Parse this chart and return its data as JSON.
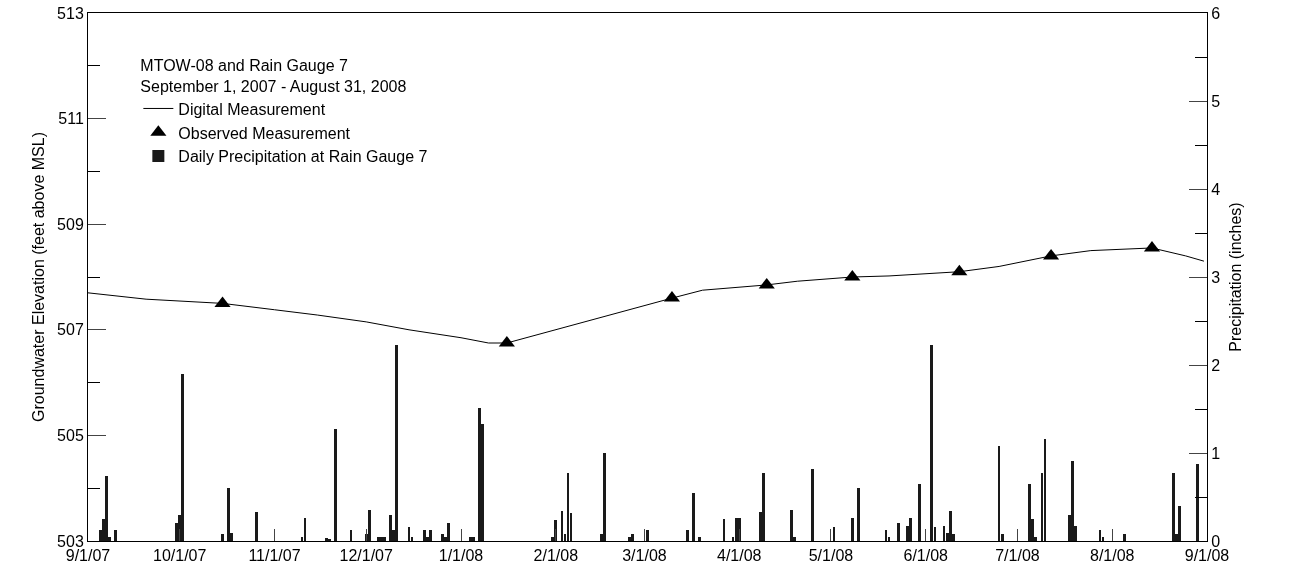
{
  "chart_data": {
    "type": "line",
    "legend_title": "MTOW-08 and Rain Gauge 7\nSeptember 1, 2007 - August 31, 2008",
    "ylabel": "Groundwater Elevation (feet above MSL)",
    "y2label": "Precipitation (inches)",
    "legend": "top left",
    "grid": false,
    "xlim": [
      "2007-09-01",
      "2008-09-01"
    ],
    "xticks": [
      {
        "value": "2007-09-01",
        "label": "9/1/07"
      },
      {
        "value": "2007-10-01",
        "label": "10/1/07"
      },
      {
        "value": "2007-11-01",
        "label": "11/1/07"
      },
      {
        "value": "2007-12-01",
        "label": "12/1/07"
      },
      {
        "value": "2008-01-01",
        "label": "1/1/08"
      },
      {
        "value": "2008-02-01",
        "label": "2/1/08"
      },
      {
        "value": "2008-03-01",
        "label": "3/1/08"
      },
      {
        "value": "2008-04-01",
        "label": "4/1/08"
      },
      {
        "value": "2008-05-01",
        "label": "5/1/08"
      },
      {
        "value": "2008-06-01",
        "label": "6/1/08"
      },
      {
        "value": "2008-07-01",
        "label": "7/1/08"
      },
      {
        "value": "2008-08-01",
        "label": "8/1/08"
      },
      {
        "value": "2008-09-01",
        "label": "9/1/08"
      }
    ],
    "ylim": [
      503,
      513
    ],
    "yticks": [
      503,
      {
        "value": 504,
        "label": null
      },
      505,
      {
        "value": 506,
        "label": null
      },
      507,
      {
        "value": 508,
        "label": null
      },
      509,
      {
        "value": 510,
        "label": null
      },
      511,
      {
        "value": 512,
        "label": null
      },
      513
    ],
    "y2lim": [
      0,
      6
    ],
    "y2ticks": [
      0,
      {
        "value": 0.5,
        "label": null
      },
      1,
      {
        "value": 1.5,
        "label": null
      },
      2,
      {
        "value": 2.5,
        "label": null
      },
      3,
      {
        "value": 3.5,
        "label": null
      },
      4,
      {
        "value": 4.5,
        "label": null
      },
      5,
      {
        "value": 5.5,
        "label": null
      },
      6
    ],
    "series": [
      {
        "name": "Digital Measurement",
        "color": "#000000",
        "marker": "none",
        "line_style": "solid",
        "x": [
          "2007-09-01",
          "2007-09-20",
          "2007-10-15",
          "2007-11-01",
          "2007-11-15",
          "2007-12-01",
          "2007-12-15",
          "2008-01-01",
          "2008-01-10",
          "2008-01-16",
          "2008-03-10",
          "2008-03-20",
          "2008-04-10",
          "2008-04-20",
          "2008-05-08",
          "2008-05-20",
          "2008-06-12",
          "2008-06-25",
          "2008-07-12",
          "2008-07-25",
          "2008-08-14",
          "2008-08-25",
          "2008-08-31"
        ],
        "values": [
          507.7,
          507.58,
          507.5,
          507.38,
          507.28,
          507.15,
          507.0,
          506.85,
          506.75,
          506.75,
          507.6,
          507.75,
          507.85,
          507.92,
          508.0,
          508.02,
          508.1,
          508.2,
          508.4,
          508.5,
          508.55,
          508.4,
          508.3
        ]
      },
      {
        "name": "Observed Measurement",
        "type": "scatter",
        "color": "#000000",
        "marker": "triangle",
        "x": [
          "2007-10-15",
          "2008-01-16",
          "2008-03-10",
          "2008-04-10",
          "2008-05-08",
          "2008-06-12",
          "2008-07-12",
          "2008-08-14"
        ],
        "values": [
          507.5,
          506.75,
          507.6,
          507.85,
          508.0,
          508.1,
          508.4,
          508.55
        ]
      },
      {
        "name": "Daily Precipitation at Rain Gauge 7",
        "type": "bar",
        "axis": "y2",
        "color": "#1a1a1a",
        "x": [
          "2007-09-05",
          "2007-09-06",
          "2007-09-07",
          "2007-09-08",
          "2007-09-10",
          "2007-09-30",
          "2007-10-01",
          "2007-10-02",
          "2007-10-15",
          "2007-10-17",
          "2007-10-18",
          "2007-10-26",
          "2007-11-10",
          "2007-11-11",
          "2007-11-18",
          "2007-11-19",
          "2007-11-21",
          "2007-11-26",
          "2007-12-01",
          "2007-12-02",
          "2007-12-05",
          "2007-12-06",
          "2007-12-07",
          "2007-12-09",
          "2007-12-10",
          "2007-12-11",
          "2007-12-15",
          "2007-12-16",
          "2007-12-20",
          "2007-12-21",
          "2007-12-22",
          "2007-12-26",
          "2007-12-27",
          "2007-12-28",
          "2008-01-04",
          "2008-01-05",
          "2008-01-07",
          "2008-01-08",
          "2008-01-31",
          "2008-02-01",
          "2008-02-03",
          "2008-02-04",
          "2008-02-05",
          "2008-02-06",
          "2008-02-16",
          "2008-02-17",
          "2008-02-25",
          "2008-02-26",
          "2008-03-02",
          "2008-03-15",
          "2008-03-17",
          "2008-03-19",
          "2008-03-27",
          "2008-03-30",
          "2008-03-31",
          "2008-04-01",
          "2008-04-08",
          "2008-04-09",
          "2008-04-18",
          "2008-04-19",
          "2008-04-25",
          "2008-05-02",
          "2008-05-08",
          "2008-05-10",
          "2008-05-19",
          "2008-05-20",
          "2008-05-23",
          "2008-05-26",
          "2008-05-27",
          "2008-05-30",
          "2008-06-03",
          "2008-06-04",
          "2008-06-07",
          "2008-06-08",
          "2008-06-09",
          "2008-06-10",
          "2008-06-25",
          "2008-06-26",
          "2008-07-05",
          "2008-07-06",
          "2008-07-07",
          "2008-07-09",
          "2008-07-10",
          "2008-07-18",
          "2008-07-19",
          "2008-07-20",
          "2008-07-28",
          "2008-07-29",
          "2008-08-05",
          "2008-08-21",
          "2008-08-22",
          "2008-08-23",
          "2008-08-29"
        ],
        "values": [
          0.13,
          0.25,
          0.74,
          0.04,
          0.13,
          0.21,
          0.3,
          1.9,
          0.08,
          0.6,
          0.09,
          0.33,
          0.04,
          0.26,
          0.03,
          0.02,
          1.27,
          0.12,
          0.08,
          0.35,
          0.04,
          0.04,
          0.04,
          0.3,
          0.13,
          2.23,
          0.16,
          0.04,
          0.12,
          0.04,
          0.13,
          0.08,
          0.04,
          0.2,
          0.04,
          0.04,
          1.51,
          1.33,
          0.04,
          0.24,
          0.34,
          0.08,
          0.77,
          0.32,
          0.08,
          1.0,
          0.04,
          0.08,
          0.12,
          0.12,
          0.54,
          0.04,
          0.25,
          0.04,
          0.26,
          0.26,
          0.33,
          0.77,
          0.35,
          0.04,
          0.82,
          0.16,
          0.26,
          0.6,
          0.13,
          0.04,
          0.21,
          0.17,
          0.26,
          0.65,
          2.23,
          0.16,
          0.17,
          0.09,
          0.34,
          0.08,
          1.08,
          0.08,
          0.65,
          0.25,
          0.04,
          0.77,
          1.16,
          0.29,
          0.91,
          0.17,
          0.13,
          0.04,
          0.08,
          0.77,
          0.08,
          0.4,
          0.88
        ]
      }
    ]
  }
}
